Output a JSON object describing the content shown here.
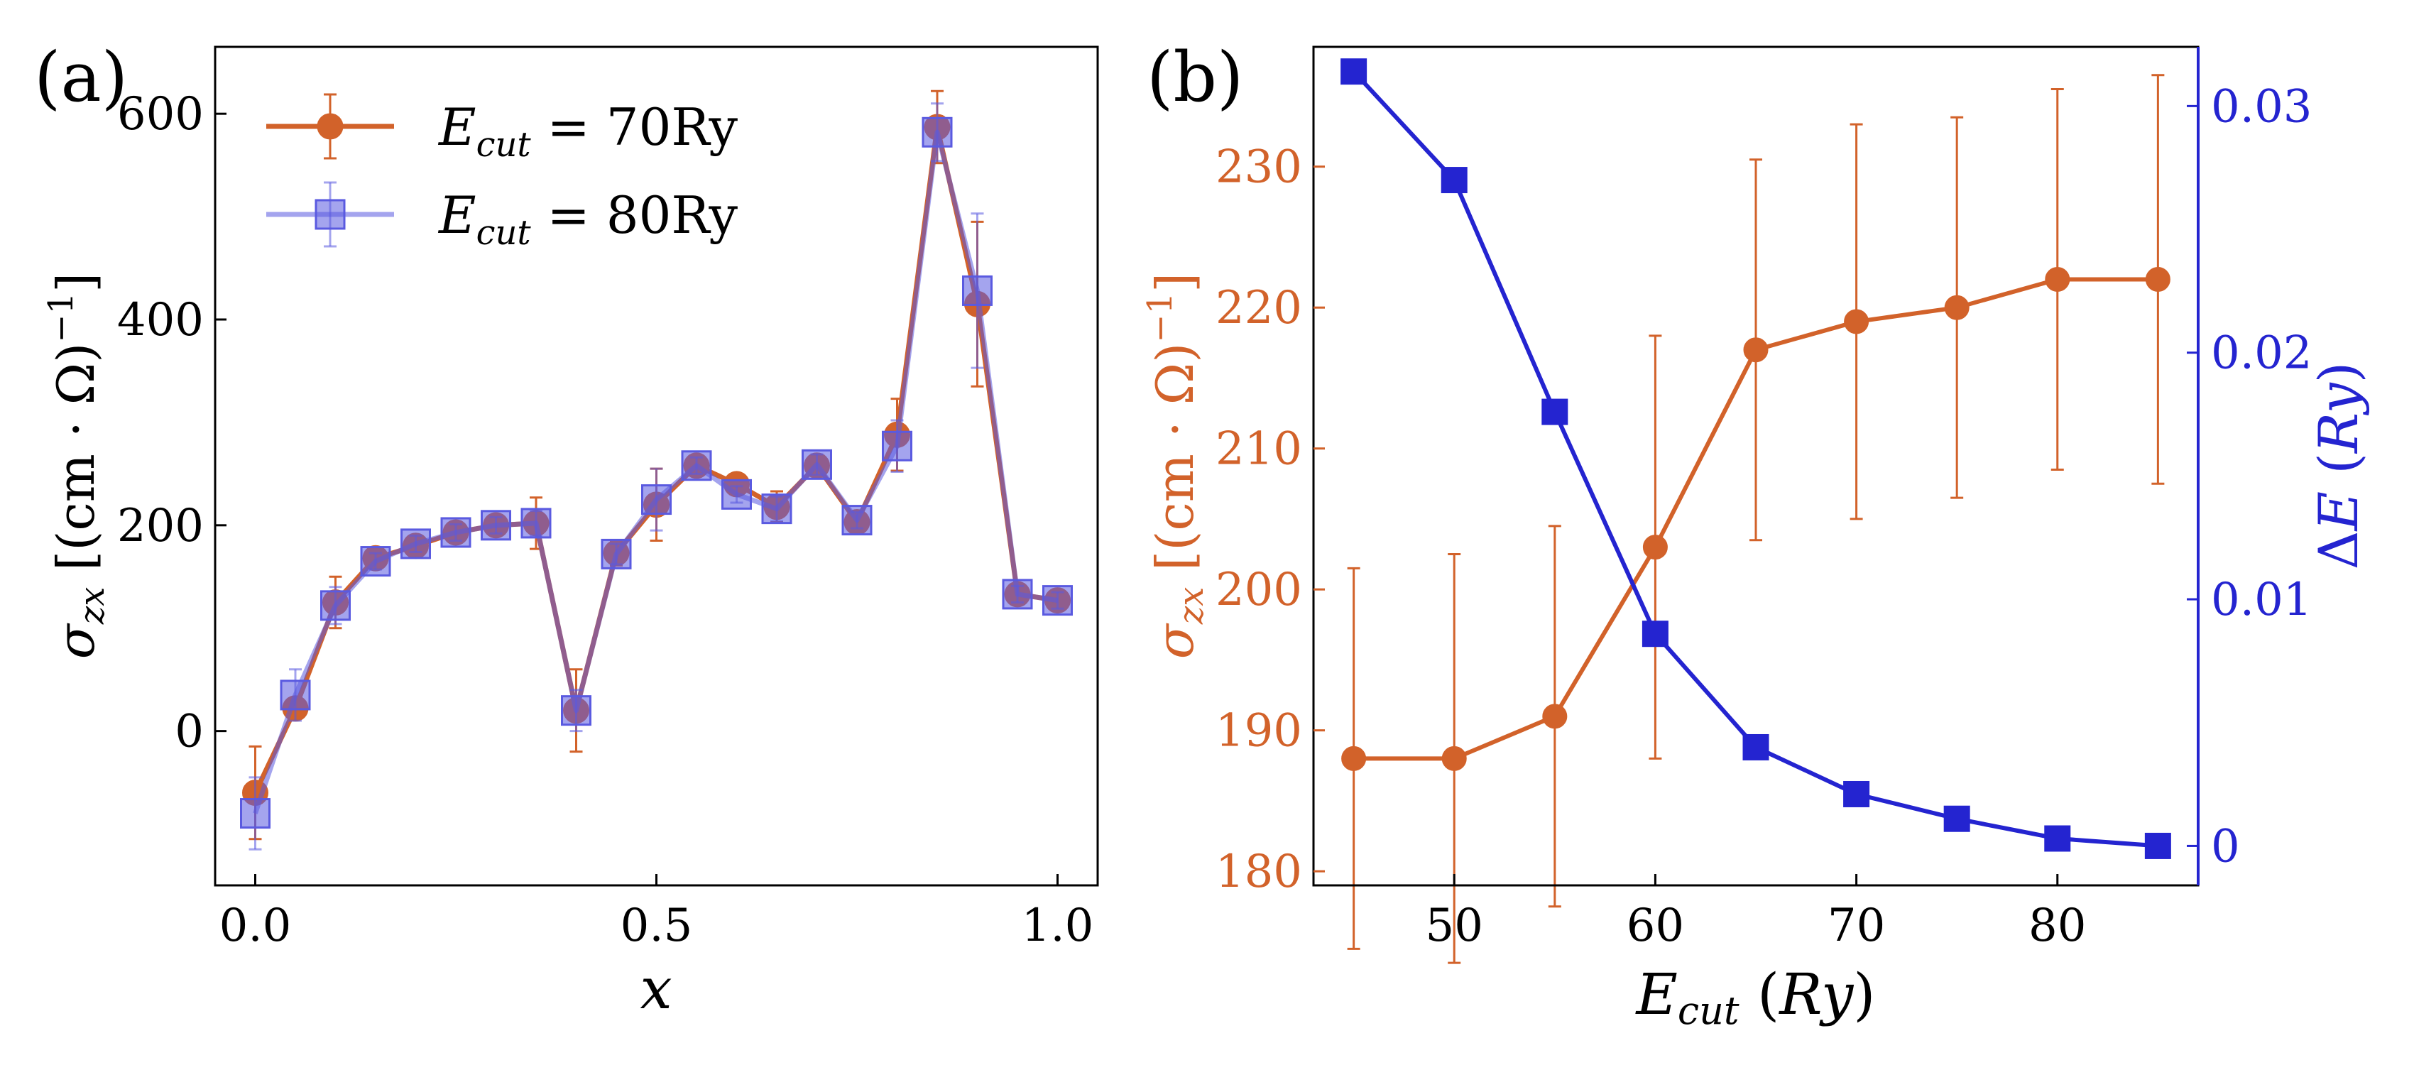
{
  "figure": {
    "panel_labels": [
      "(a)",
      "(b)"
    ]
  },
  "chart_data": [
    {
      "type": "line",
      "panel": "(a)",
      "xlabel": "x",
      "ylabel": "σ_zx [(cm·Ω)^−1]",
      "xlim": [
        -0.05,
        1.05
      ],
      "ylim": [
        -150,
        665
      ],
      "xticks": [
        0.0,
        0.5,
        1.0
      ],
      "xtick_labels": [
        "0.0",
        "0.5",
        "1.0"
      ],
      "yticks": [
        0,
        200,
        400,
        600
      ],
      "ytick_labels": [
        "0",
        "200",
        "400",
        "600"
      ],
      "legend_position": "top-left",
      "x": [
        0.0,
        0.05,
        0.1,
        0.15,
        0.2,
        0.25,
        0.3,
        0.35,
        0.4,
        0.45,
        0.5,
        0.55,
        0.6,
        0.65,
        0.7,
        0.75,
        0.8,
        0.85,
        0.9,
        0.95,
        1.0
      ],
      "series": [
        {
          "name": "E_cut = 70Ry",
          "legend_main": "E",
          "legend_sub": "cut",
          "legend_value": " = 70Ry",
          "color": "#d2622a",
          "marker": "circle",
          "values": [
            -60,
            22,
            125,
            168,
            180,
            193,
            200,
            202,
            20,
            173,
            220,
            258,
            240,
            218,
            258,
            203,
            288,
            587,
            415,
            133,
            127
          ],
          "errors": [
            45,
            10,
            25,
            10,
            8,
            8,
            8,
            25,
            40,
            12,
            35,
            8,
            8,
            15,
            10,
            8,
            35,
            35,
            80,
            8,
            8
          ]
        },
        {
          "name": "E_cut = 80Ry",
          "legend_main": "E",
          "legend_sub": "cut",
          "legend_value": " = 80Ry",
          "color": "#5a5ae0",
          "marker": "square",
          "values": [
            -80,
            35,
            122,
            165,
            182,
            193,
            200,
            202,
            20,
            172,
            225,
            258,
            230,
            216,
            259,
            205,
            277,
            582,
            428,
            133,
            127
          ],
          "errors": [
            35,
            25,
            18,
            8,
            8,
            8,
            8,
            12,
            20,
            10,
            30,
            8,
            8,
            12,
            10,
            8,
            25,
            28,
            75,
            8,
            8
          ]
        }
      ]
    },
    {
      "type": "line",
      "panel": "(b)",
      "xlabel": "E_cut (Ry)",
      "ylabel_left": "σ_zx [(cm·Ω)^−1]",
      "ylabel_right": "ΔE (Ry)",
      "xlim": [
        43,
        87
      ],
      "ylim_left": [
        179,
        238.5
      ],
      "ylim_right": [
        -0.0016,
        0.0324
      ],
      "xticks": [
        50,
        60,
        70,
        80
      ],
      "xtick_labels": [
        "50",
        "60",
        "70",
        "80"
      ],
      "yticks_left": [
        180,
        190,
        200,
        210,
        220,
        230
      ],
      "ytick_labels_left": [
        "180",
        "190",
        "200",
        "210",
        "220",
        "230"
      ],
      "yticks_right": [
        0,
        0.01,
        0.02,
        0.03
      ],
      "ytick_labels_right": [
        "0",
        "0.01",
        "0.02",
        "0.03"
      ],
      "x": [
        45,
        50,
        55,
        60,
        65,
        70,
        75,
        80,
        85
      ],
      "series": [
        {
          "name": "σ_zx",
          "axis": "left",
          "color": "#d2622a",
          "marker": "circle",
          "values": [
            188,
            188,
            191,
            203,
            217,
            219,
            220,
            222,
            222
          ],
          "errors": [
            13.5,
            14.5,
            13.5,
            15,
            13.5,
            14,
            13.5,
            13.5,
            14.5
          ]
        },
        {
          "name": "ΔE",
          "axis": "right",
          "color": "#2424d0",
          "marker": "square",
          "values": [
            0.0314,
            0.027,
            0.0176,
            0.0086,
            0.004,
            0.0021,
            0.0011,
            0.0003,
            0.0
          ]
        }
      ]
    }
  ]
}
